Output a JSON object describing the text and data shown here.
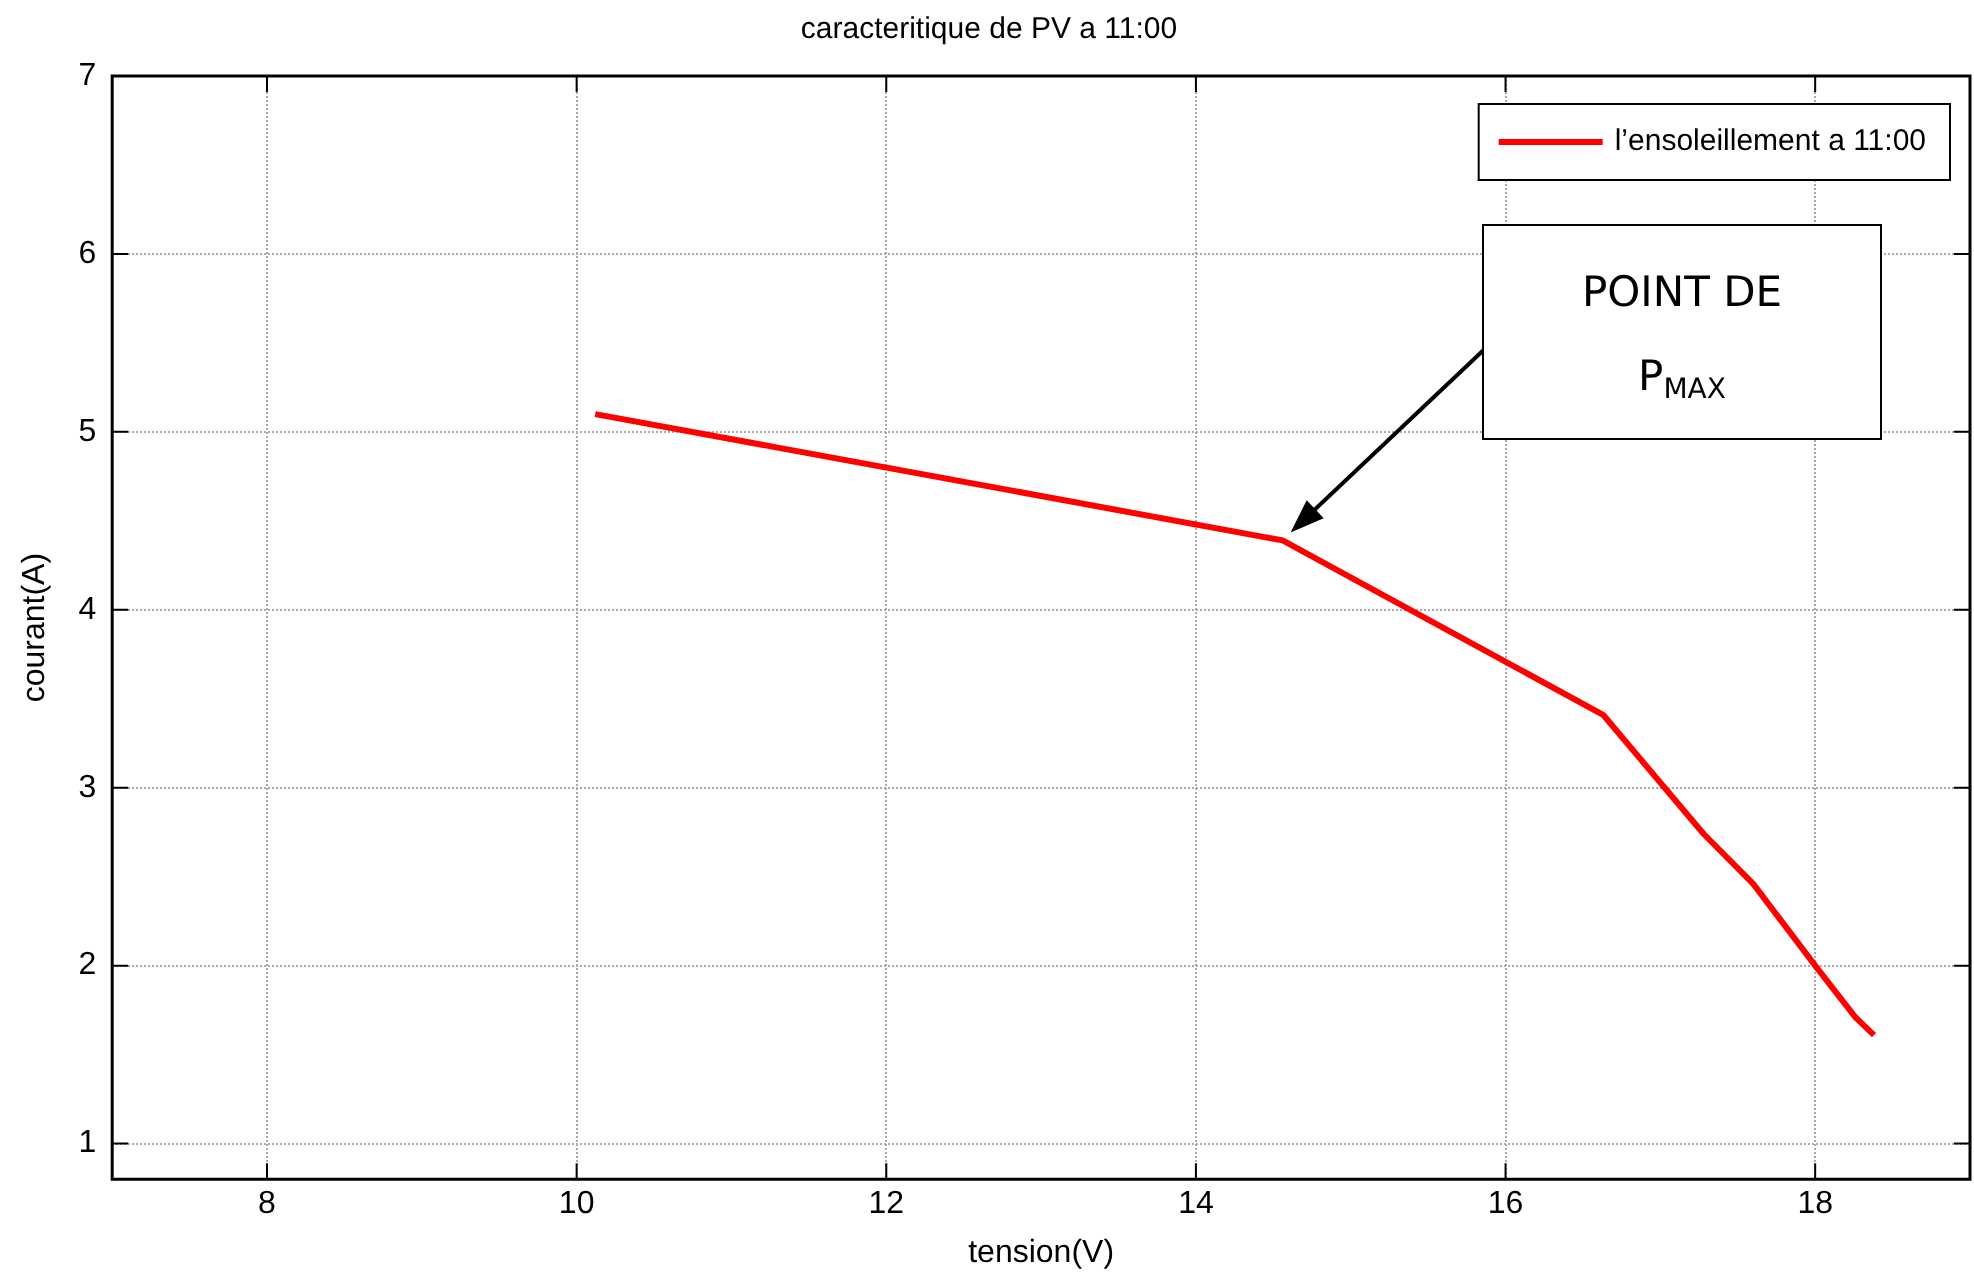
{
  "chart_data": {
    "type": "line",
    "title": "caracteritique de PV a 11:00",
    "xlabel": "tension(V)",
    "ylabel": "courant(A)",
    "x": [
      10.12,
      14.56,
      16.63,
      17.28,
      17.6,
      18.0,
      18.26,
      18.38
    ],
    "series": [
      {
        "name": "l’ensoleillement a 11:00",
        "color": "#ff0000",
        "values": [
          5.1,
          4.39,
          3.41,
          2.74,
          2.46,
          2.0,
          1.71,
          1.61
        ]
      }
    ],
    "xlim": [
      7,
      19
    ],
    "xticks": [
      8,
      10,
      12,
      14,
      16,
      18
    ],
    "ylim": [
      0.8,
      7
    ],
    "yticks": [
      1,
      2,
      3,
      4,
      5,
      6,
      7
    ],
    "grid": true,
    "legend": "top right",
    "marker": "none",
    "line_style": "solid",
    "annotations": [
      "POINT DE P$_{MAX}$"
    ]
  }
}
